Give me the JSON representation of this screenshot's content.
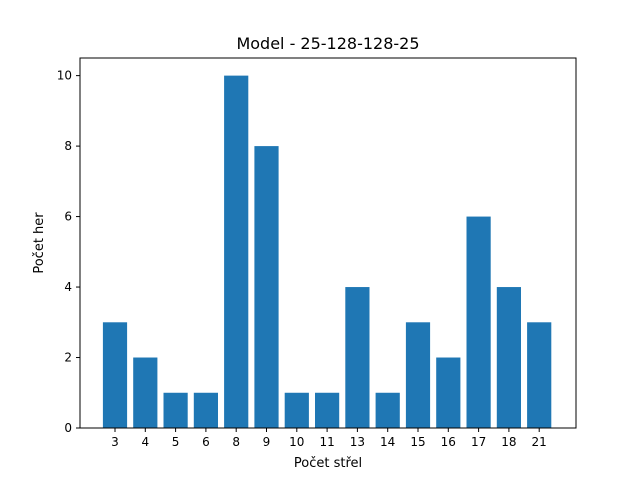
{
  "chart_data": {
    "type": "bar",
    "title": "Model - 25-128-128-25",
    "xlabel": "Počet střel",
    "ylabel": "Počet her",
    "categories": [
      "3",
      "4",
      "5",
      "6",
      "8",
      "9",
      "10",
      "11",
      "13",
      "14",
      "15",
      "16",
      "17",
      "18",
      "21"
    ],
    "values": [
      3,
      2,
      1,
      1,
      10,
      8,
      1,
      1,
      4,
      1,
      3,
      2,
      6,
      4,
      3
    ],
    "ylim": [
      0,
      10.5
    ],
    "yticks": [
      0,
      2,
      4,
      6,
      8,
      10
    ],
    "bar_color": "#1f77b4",
    "grid": false,
    "legend": "none"
  }
}
